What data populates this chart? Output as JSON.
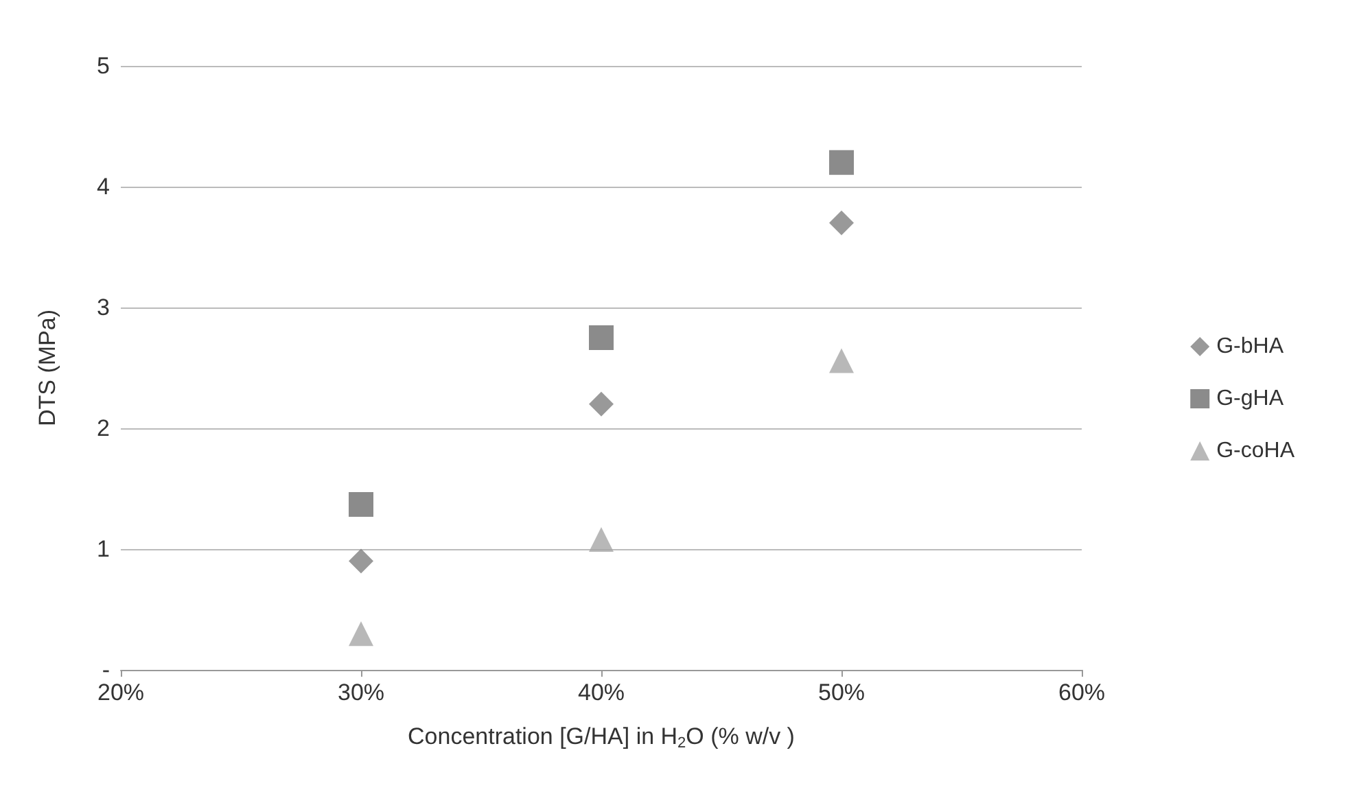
{
  "chart_data": {
    "type": "scatter",
    "xlabel": "Concentration [G/HA] in H$_{2}$O (% w/v )",
    "ylabel": "DTS (MPa)",
    "x": [
      0.3,
      0.4,
      0.5
    ],
    "series": [
      {
        "name": "G-bHA",
        "color": "#808080",
        "marker": "diamond",
        "values": [
          0.9,
          2.2,
          3.7
        ]
      },
      {
        "name": "G-gHA",
        "color": "#6e6e6e",
        "marker": "square",
        "values": [
          1.37,
          2.75,
          4.2
        ]
      },
      {
        "name": "G-coHA",
        "color": "#a6a6a6",
        "marker": "triangle",
        "values": [
          0.3,
          1.08,
          2.56
        ]
      }
    ],
    "xlim": [
      0.2,
      0.6
    ],
    "xticks": [
      {
        "value": 0.2,
        "label": "20%"
      },
      {
        "value": 0.3,
        "label": "30%"
      },
      {
        "value": 0.4,
        "label": "40%"
      },
      {
        "value": 0.5,
        "label": "50%"
      },
      {
        "value": 0.6,
        "label": "60%"
      }
    ],
    "ylim": [
      0,
      5
    ],
    "yticks": [
      {
        "value": 0,
        "label": "-"
      },
      1,
      2,
      3,
      4,
      5
    ],
    "grid": "y",
    "legend": "right"
  }
}
